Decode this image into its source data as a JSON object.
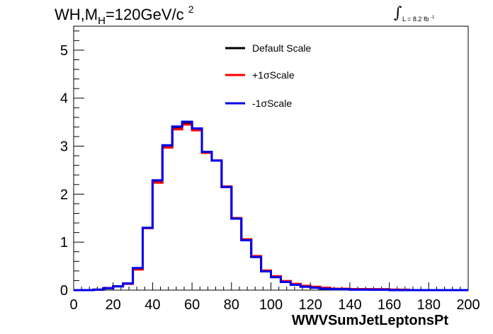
{
  "header": {
    "title_prefix": "WH,M",
    "title_sub": "H",
    "title_suffix": "=120GeV/c",
    "title_sup": "2",
    "lumi_text": "L = 8.2 fb",
    "lumi_sup": "-1"
  },
  "chart_data": {
    "type": "line",
    "title": "WH,MH=120GeV/c2",
    "xlabel": "WWVSumJetLeptonsPt",
    "ylabel": "",
    "xlim": [
      0,
      200
    ],
    "ylim": [
      0,
      5.5
    ],
    "x_ticks": [
      "0",
      "20",
      "40",
      "60",
      "80",
      "100",
      "120",
      "140",
      "160",
      "180",
      "200"
    ],
    "y_ticks": [
      "0",
      "1",
      "2",
      "3",
      "4",
      "5"
    ],
    "legend_position": "top-center",
    "bin_edges": [
      0,
      5,
      10,
      15,
      20,
      25,
      30,
      35,
      40,
      45,
      50,
      55,
      60,
      65,
      70,
      75,
      80,
      85,
      90,
      95,
      100,
      105,
      110,
      115,
      120,
      125,
      130,
      135,
      140,
      145,
      150,
      155,
      160,
      165,
      170,
      175,
      180,
      185,
      190,
      195,
      200
    ],
    "series": [
      {
        "name": "Default Scale",
        "color": "#000000",
        "values": [
          0.0,
          0.0,
          0.01,
          0.04,
          0.08,
          0.14,
          0.45,
          1.29,
          2.27,
          3.0,
          3.38,
          3.48,
          3.35,
          2.87,
          2.7,
          2.15,
          1.5,
          1.05,
          0.7,
          0.4,
          0.28,
          0.18,
          0.12,
          0.08,
          0.06,
          0.04,
          0.03,
          0.02,
          0.02,
          0.02,
          0.01,
          0.01,
          0.01,
          0.0,
          0.0,
          0.0,
          0.0,
          0.0,
          0.0,
          0.0
        ]
      },
      {
        "name": "+1σScale",
        "color": "#ff0000",
        "values": [
          0.0,
          0.0,
          0.01,
          0.04,
          0.08,
          0.13,
          0.43,
          1.29,
          2.24,
          2.97,
          3.35,
          3.45,
          3.33,
          2.86,
          2.7,
          2.16,
          1.5,
          1.06,
          0.71,
          0.41,
          0.29,
          0.19,
          0.13,
          0.09,
          0.07,
          0.05,
          0.03,
          0.03,
          0.02,
          0.02,
          0.02,
          0.02,
          0.01,
          0.01,
          0.0,
          0.0,
          0.0,
          0.0,
          0.0,
          0.0
        ]
      },
      {
        "name": "-1σScale",
        "color": "#0000ee",
        "values": [
          0.0,
          0.0,
          0.01,
          0.04,
          0.08,
          0.14,
          0.46,
          1.3,
          2.29,
          3.02,
          3.41,
          3.51,
          3.37,
          2.88,
          2.7,
          2.15,
          1.49,
          1.04,
          0.69,
          0.39,
          0.27,
          0.17,
          0.11,
          0.07,
          0.05,
          0.03,
          0.02,
          0.02,
          0.01,
          0.01,
          0.01,
          0.01,
          0.0,
          0.0,
          0.0,
          0.0,
          0.0,
          0.0,
          0.0,
          0.0
        ]
      }
    ]
  }
}
